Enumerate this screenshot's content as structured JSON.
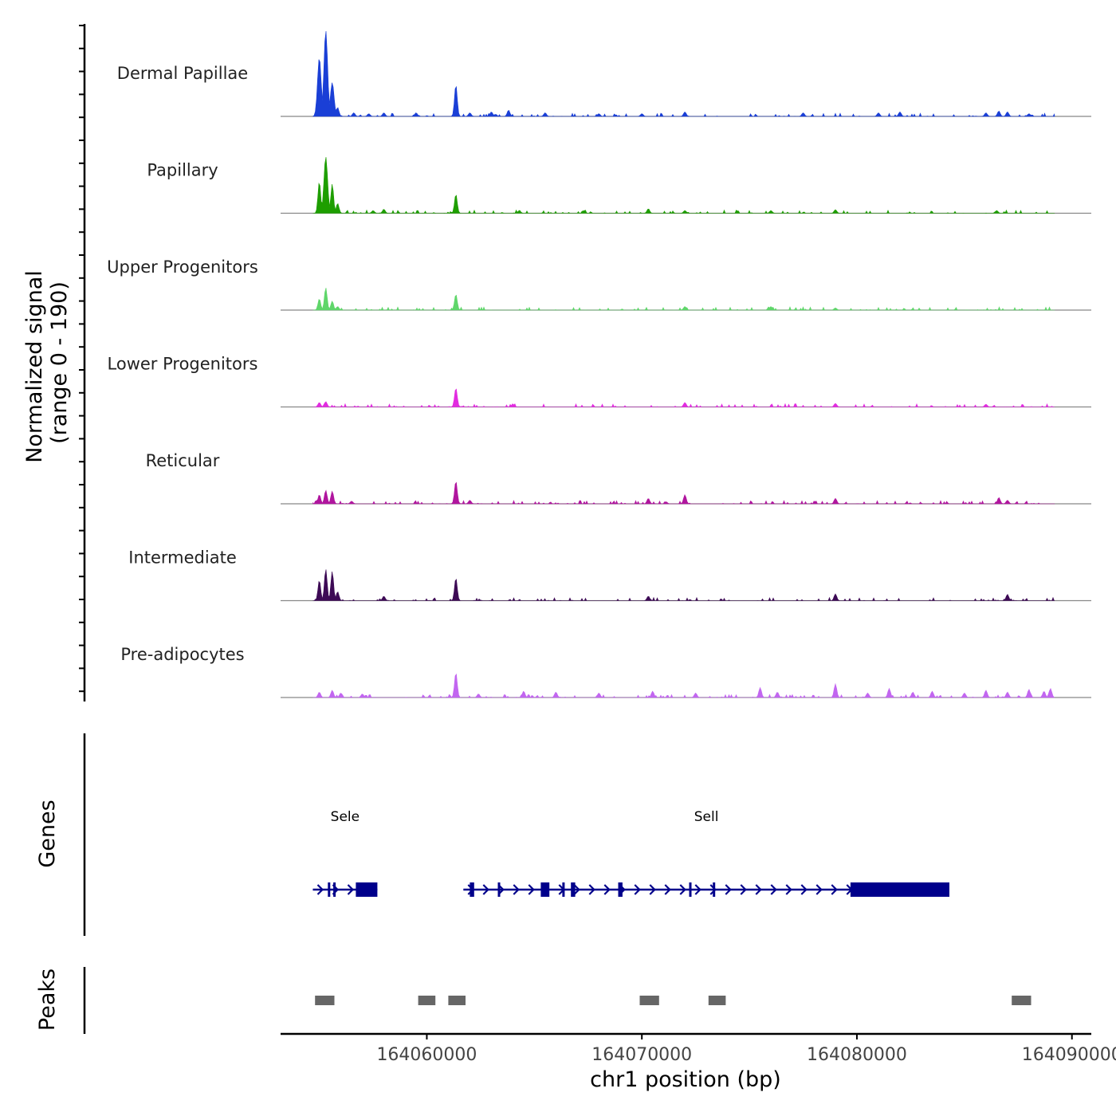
{
  "chart_data": {
    "type": "area",
    "title": "",
    "ylabel": "Normalized signal",
    "ylabel_range": "(range 0 - 190)",
    "ylim": [
      0,
      190
    ],
    "xlabel": "chr1 position (bp)",
    "xlim": [
      164053200,
      164090900
    ],
    "xticks": [
      164060000,
      164070000,
      164080000,
      164090000
    ],
    "xtick_labels": [
      "164060000",
      "164070000",
      "164080000",
      "164090000"
    ],
    "series": [
      {
        "name": "Dermal Papillae",
        "color": "#1a3fd6",
        "peaks": [
          [
            164055000,
            130
          ],
          [
            164055300,
            190
          ],
          [
            164055600,
            75
          ],
          [
            164055850,
            20
          ],
          [
            164056600,
            8
          ],
          [
            164057300,
            6
          ],
          [
            164058000,
            8
          ],
          [
            164059500,
            8
          ],
          [
            164061350,
            70
          ],
          [
            164062000,
            8
          ],
          [
            164063000,
            10
          ],
          [
            164063800,
            14
          ],
          [
            164065500,
            8
          ],
          [
            164068000,
            6
          ],
          [
            164070000,
            6
          ],
          [
            164072000,
            10
          ],
          [
            164077500,
            8
          ],
          [
            164081000,
            8
          ],
          [
            164082000,
            10
          ],
          [
            164086000,
            8
          ],
          [
            164086600,
            12
          ],
          [
            164087000,
            10
          ],
          [
            164088000,
            6
          ]
        ]
      },
      {
        "name": "Papillary",
        "color": "#1e9e00",
        "peaks": [
          [
            164055000,
            70
          ],
          [
            164055300,
            125
          ],
          [
            164055600,
            65
          ],
          [
            164055850,
            22
          ],
          [
            164057500,
            6
          ],
          [
            164058000,
            9
          ],
          [
            164061350,
            42
          ],
          [
            164064300,
            6
          ],
          [
            164067300,
            6
          ],
          [
            164070300,
            10
          ],
          [
            164072000,
            6
          ],
          [
            164076000,
            6
          ],
          [
            164079000,
            8
          ],
          [
            164086500,
            6
          ]
        ]
      },
      {
        "name": "Upper Progenitors",
        "color": "#5fd66a",
        "peaks": [
          [
            164055000,
            25
          ],
          [
            164055300,
            50
          ],
          [
            164055600,
            20
          ],
          [
            164055850,
            8
          ],
          [
            164061350,
            35
          ],
          [
            164072000,
            8
          ],
          [
            164076000,
            8
          ],
          [
            164079000,
            5
          ]
        ]
      },
      {
        "name": "Lower Progenitors",
        "color": "#e22be0",
        "peaks": [
          [
            164055000,
            10
          ],
          [
            164055300,
            12
          ],
          [
            164061350,
            42
          ],
          [
            164064000,
            6
          ],
          [
            164072000,
            10
          ],
          [
            164079000,
            8
          ],
          [
            164086000,
            6
          ]
        ]
      },
      {
        "name": "Reticular",
        "color": "#b0159e",
        "peaks": [
          [
            164055000,
            20
          ],
          [
            164055300,
            30
          ],
          [
            164055600,
            28
          ],
          [
            164056500,
            6
          ],
          [
            164061350,
            50
          ],
          [
            164062000,
            8
          ],
          [
            164070300,
            12
          ],
          [
            164072000,
            20
          ],
          [
            164079000,
            12
          ],
          [
            164086600,
            14
          ],
          [
            164087000,
            8
          ]
        ]
      },
      {
        "name": "Intermediate",
        "color": "#3d0a55",
        "peaks": [
          [
            164055000,
            45
          ],
          [
            164055300,
            70
          ],
          [
            164055600,
            65
          ],
          [
            164055850,
            20
          ],
          [
            164058000,
            10
          ],
          [
            164061350,
            50
          ],
          [
            164070300,
            10
          ],
          [
            164079000,
            15
          ],
          [
            164087000,
            14
          ]
        ]
      },
      {
        "name": "Pre-adipocytes",
        "color": "#c266f0",
        "peaks": [
          [
            164055000,
            12
          ],
          [
            164055600,
            16
          ],
          [
            164056000,
            10
          ],
          [
            164057000,
            8
          ],
          [
            164061350,
            55
          ],
          [
            164062400,
            8
          ],
          [
            164064500,
            14
          ],
          [
            164066000,
            12
          ],
          [
            164068000,
            10
          ],
          [
            164070500,
            14
          ],
          [
            164072500,
            10
          ],
          [
            164075500,
            22
          ],
          [
            164076300,
            12
          ],
          [
            164079000,
            30
          ],
          [
            164080500,
            10
          ],
          [
            164081500,
            20
          ],
          [
            164082600,
            12
          ],
          [
            164083500,
            14
          ],
          [
            164085000,
            10
          ],
          [
            164086000,
            16
          ],
          [
            164087000,
            12
          ],
          [
            164088000,
            18
          ],
          [
            164088700,
            14
          ],
          [
            164089000,
            20
          ]
        ]
      }
    ],
    "genes": [
      {
        "name": "Sele",
        "start": 164054700,
        "end": 164057700,
        "strand": "+",
        "exons": [
          [
            164055400,
            164055450
          ],
          [
            164055650,
            164055700
          ],
          [
            164056700,
            164057700
          ]
        ]
      },
      {
        "name": "Sell",
        "start": 164061700,
        "end": 164084300,
        "strand": "+",
        "exons": [
          [
            164062000,
            164062200
          ],
          [
            164063300,
            164063350
          ],
          [
            164065300,
            164065700
          ],
          [
            164066300,
            164066350
          ],
          [
            164066700,
            164066900
          ],
          [
            164068900,
            164069100
          ],
          [
            164072200,
            164072300
          ],
          [
            164073300,
            164073350
          ],
          [
            164079700,
            164084300
          ]
        ]
      }
    ],
    "peaks_track": [
      [
        164054800,
        164055700
      ],
      [
        164059600,
        164060400
      ],
      [
        164061000,
        164061800
      ],
      [
        164069900,
        164070800
      ],
      [
        164073100,
        164073900
      ],
      [
        164087200,
        164088100
      ]
    ],
    "gene_color": "#00008b",
    "peak_color": "#666666"
  },
  "panels": {
    "genes_label": "Genes",
    "peaks_label": "Peaks"
  }
}
